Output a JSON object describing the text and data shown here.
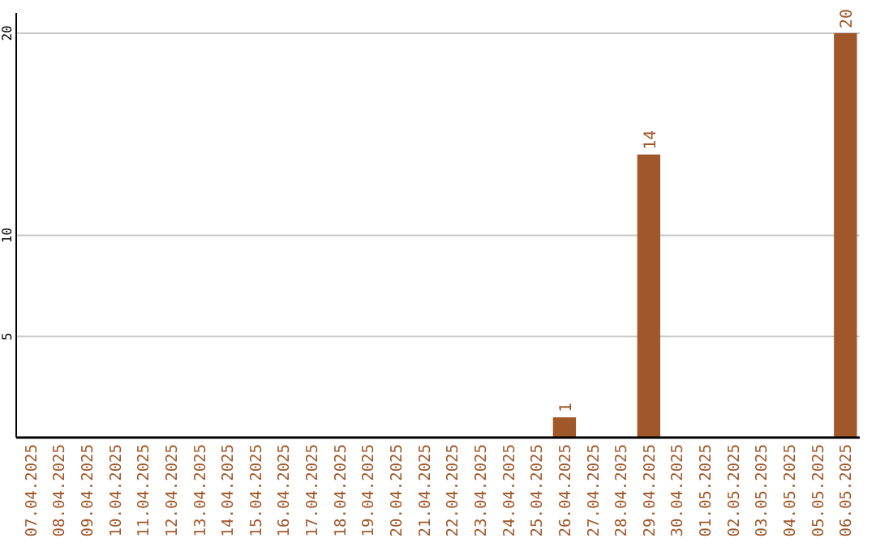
{
  "chart_data": {
    "type": "bar",
    "categories": [
      "07.04.2025",
      "08.04.2025",
      "09.04.2025",
      "10.04.2025",
      "11.04.2025",
      "12.04.2025",
      "13.04.2025",
      "14.04.2025",
      "15.04.2025",
      "16.04.2025",
      "17.04.2025",
      "18.04.2025",
      "19.04.2025",
      "20.04.2025",
      "21.04.2025",
      "22.04.2025",
      "23.04.2025",
      "24.04.2025",
      "25.04.2025",
      "26.04.2025",
      "27.04.2025",
      "28.04.2025",
      "29.04.2025",
      "30.04.2025",
      "01.05.2025",
      "02.05.2025",
      "03.05.2025",
      "04.05.2025",
      "05.05.2025",
      "06.05.2025"
    ],
    "values": [
      0,
      0,
      0,
      0,
      0,
      0,
      0,
      0,
      0,
      0,
      0,
      0,
      0,
      0,
      0,
      0,
      0,
      0,
      0,
      1,
      0,
      0,
      14,
      0,
      0,
      0,
      0,
      0,
      0,
      20
    ],
    "value_labels": [
      null,
      null,
      null,
      null,
      null,
      null,
      null,
      null,
      null,
      null,
      null,
      null,
      null,
      null,
      null,
      null,
      null,
      null,
      null,
      "1",
      null,
      null,
      "14",
      null,
      null,
      null,
      null,
      null,
      null,
      "20"
    ],
    "color": "#a0582a",
    "ylim": [
      0,
      21
    ],
    "yticks": [
      5,
      10,
      20
    ],
    "grid": "y"
  }
}
